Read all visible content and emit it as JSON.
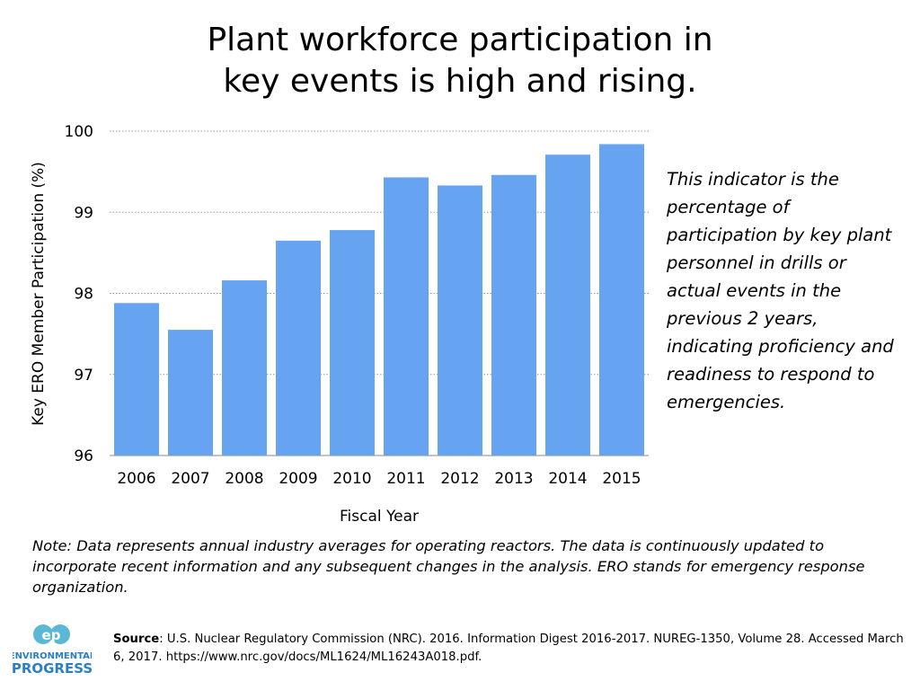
{
  "title": {
    "line1": "Plant workforce participation in",
    "line2": "key events is high and rising."
  },
  "annotation": "This indicator is the percentage of participation by key plant personnel in drills or actual events in the previous 2 years, indicating proficiency and readiness to respond to emergencies.",
  "note": "Note: Data represents annual industry averages for operating reactors. The data is continuously updated to incorporate recent information and any subsequent changes in the analysis. ERO stands for emergency response organization.",
  "source": {
    "label": "Source",
    "text": ": U.S. Nuclear Regulatory Commission (NRC). 2016. Information Digest 2016-2017. NUREG-1350, Volume 28. Accessed March 6, 2017. https://www.nrc.gov/docs/ML1624/ML16243A018.pdf."
  },
  "logo": {
    "mark": "ep",
    "line1": "ENVIRONMENTAL",
    "line2": "PROGRESS"
  },
  "colors": {
    "bar": "#66a3f0",
    "logo_mark": "#5ab8d6",
    "logo_text": "#2b7fc0"
  },
  "chart_data": {
    "type": "bar",
    "title": "Plant workforce participation in key events is high and rising.",
    "xlabel": "Fiscal Year",
    "ylabel": "Key ERO Member Participation (%)",
    "categories": [
      "2006",
      "2007",
      "2008",
      "2009",
      "2010",
      "2011",
      "2012",
      "2013",
      "2014",
      "2015"
    ],
    "values": [
      97.88,
      97.55,
      98.16,
      98.65,
      98.78,
      99.43,
      99.33,
      99.46,
      99.71,
      99.84
    ],
    "ylim": [
      96,
      100
    ],
    "yticks": [
      96,
      97,
      98,
      99,
      100
    ],
    "grid": true,
    "gridline_style": "dotted"
  }
}
